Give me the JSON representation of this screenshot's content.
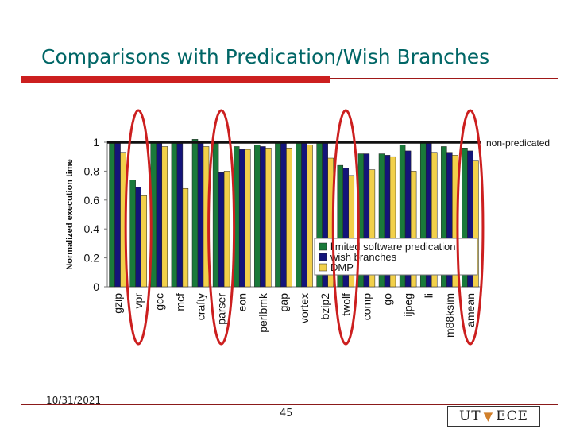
{
  "slide": {
    "title": "Comparisons with Predication/Wish Branches",
    "date": "10/31/2021",
    "page_number": "45",
    "logo_left": "UT",
    "logo_right": "ECE"
  },
  "colors": {
    "title": "#006666",
    "accent_rule": "#cc1f1f",
    "circle": "#cc1f1f",
    "series": [
      "#1a7a3a",
      "#14147a",
      "#f2d04a"
    ]
  },
  "chart_data": {
    "type": "bar",
    "ylabel": "Normalized execution time",
    "ylim": [
      0,
      1
    ],
    "yticks": [
      "0",
      "0.2",
      "0.4",
      "0.6",
      "0.8",
      "1"
    ],
    "reference_line": {
      "value": 1.0,
      "label": "non-predicated"
    },
    "categories": [
      "gzip",
      "vpr",
      "gcc",
      "mcf",
      "crafty",
      "parser",
      "eon",
      "perlbmk",
      "gap",
      "vortex",
      "bzip2",
      "twolf",
      "comp",
      "go",
      "ijpeg",
      "li",
      "m88ksim",
      "amean"
    ],
    "series": [
      {
        "name": "limited software predication",
        "values": [
          1.0,
          0.74,
          1.0,
          1.0,
          1.02,
          1.0,
          0.97,
          0.98,
          1.0,
          1.0,
          1.0,
          0.84,
          0.92,
          0.92,
          0.98,
          1.0,
          0.97,
          0.96
        ]
      },
      {
        "name": "wish branches",
        "values": [
          1.0,
          0.69,
          1.0,
          0.99,
          1.0,
          0.79,
          0.95,
          0.97,
          1.0,
          1.0,
          1.0,
          0.82,
          0.92,
          0.91,
          0.94,
          1.0,
          0.93,
          0.94
        ]
      },
      {
        "name": "DMP",
        "values": [
          0.93,
          0.63,
          0.97,
          0.68,
          0.97,
          0.8,
          0.95,
          0.96,
          0.96,
          0.98,
          0.89,
          0.77,
          0.81,
          0.9,
          0.8,
          0.93,
          0.91,
          0.87
        ]
      }
    ],
    "highlighted_categories": [
      "vpr",
      "parser",
      "twolf",
      "amean"
    ],
    "legend_placement": "bottom-right",
    "grid": false
  }
}
